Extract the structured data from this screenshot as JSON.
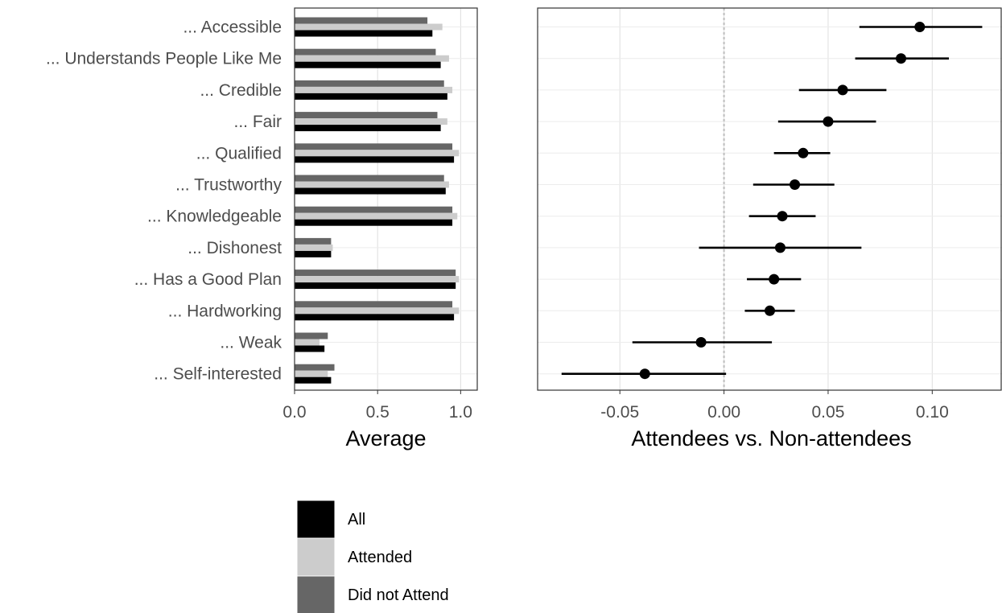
{
  "chart_data": [
    {
      "type": "bar",
      "orientation": "horizontal",
      "categories": [
        "... Accessible",
        "... Understands People Like Me",
        "... Credible",
        "... Fair",
        "... Qualified",
        "... Trustworthy",
        "... Knowledgeable",
        "... Dishonest",
        "... Has a Good Plan",
        "... Hardworking",
        "... Weak",
        "... Self-interested"
      ],
      "series": [
        {
          "name": "Did not Attend",
          "color": "#666666",
          "values": [
            0.8,
            0.85,
            0.9,
            0.86,
            0.95,
            0.9,
            0.95,
            0.22,
            0.97,
            0.95,
            0.2,
            0.24
          ]
        },
        {
          "name": "Attended",
          "color": "#cccccc",
          "values": [
            0.89,
            0.93,
            0.95,
            0.92,
            0.99,
            0.93,
            0.98,
            0.23,
            0.99,
            0.99,
            0.15,
            0.2
          ]
        },
        {
          "name": "All",
          "color": "#000000",
          "values": [
            0.83,
            0.88,
            0.92,
            0.88,
            0.96,
            0.91,
            0.95,
            0.22,
            0.97,
            0.96,
            0.18,
            0.22
          ]
        }
      ],
      "xlabel": "Average",
      "xlim": [
        0,
        1.1
      ],
      "xticks": [
        "0.0",
        "0.5",
        "1.0"
      ],
      "grid": true
    },
    {
      "type": "scatter",
      "subtype": "point-range",
      "categories": [
        "... Accessible",
        "... Understands People Like Me",
        "... Credible",
        "... Fair",
        "... Qualified",
        "... Trustworthy",
        "... Knowledgeable",
        "... Dishonest",
        "... Has a Good Plan",
        "... Hardworking",
        "... Weak",
        "... Self-interested"
      ],
      "estimates": [
        0.094,
        0.085,
        0.057,
        0.05,
        0.038,
        0.034,
        0.028,
        0.027,
        0.024,
        0.022,
        -0.011,
        -0.038
      ],
      "ci_low": [
        0.065,
        0.063,
        0.036,
        0.026,
        0.024,
        0.014,
        0.012,
        -0.012,
        0.011,
        0.01,
        -0.044,
        -0.078
      ],
      "ci_high": [
        0.124,
        0.108,
        0.078,
        0.073,
        0.051,
        0.053,
        0.044,
        0.066,
        0.037,
        0.034,
        0.023,
        0.001
      ],
      "xlabel": "Attendees vs. Non-attendees",
      "xlim": [
        -0.0895,
        0.1335
      ],
      "xticks": [
        "-0.05",
        "0.00",
        "0.05",
        "0.10"
      ],
      "reference_line": 0,
      "grid": true
    }
  ],
  "legend": {
    "items": [
      {
        "label": "All",
        "color": "#000000"
      },
      {
        "label": "Attended",
        "color": "#cccccc"
      },
      {
        "label": "Did not Attend",
        "color": "#666666"
      }
    ]
  }
}
